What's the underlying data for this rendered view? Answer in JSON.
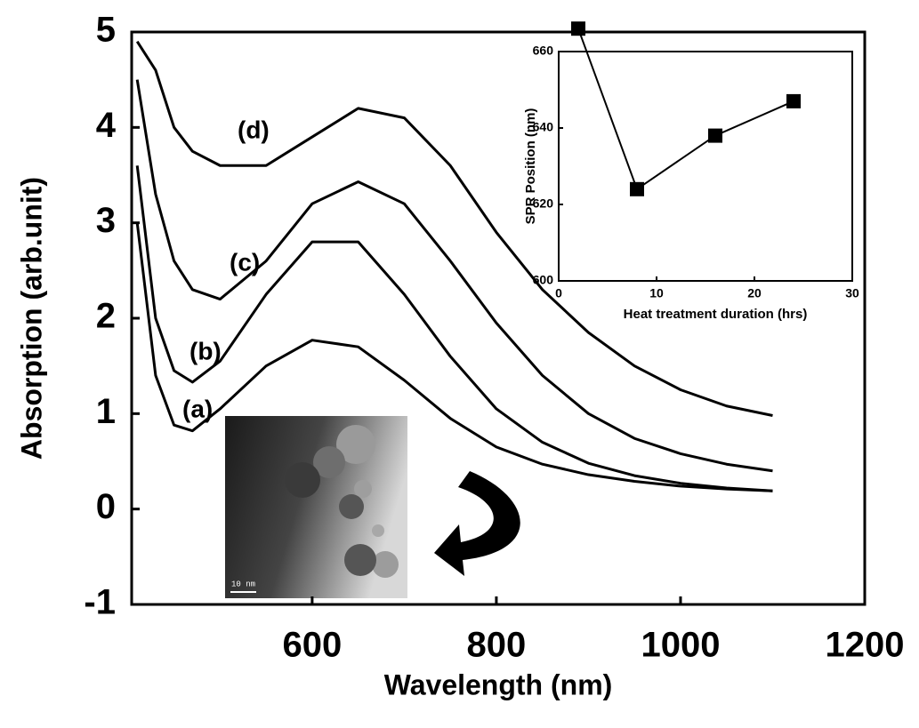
{
  "chart_data": [
    {
      "type": "line",
      "xlabel": "Wavelength (nm)",
      "ylabel": "Absorption (arb.unit)",
      "xlim": [
        404,
        1200
      ],
      "ylim": [
        -1,
        5
      ],
      "xticks": [
        600,
        800,
        1000,
        1200
      ],
      "yticks": [
        -1,
        0,
        1,
        2,
        3,
        4,
        5
      ],
      "x": [
        410,
        430,
        450,
        470,
        500,
        550,
        600,
        650,
        700,
        750,
        800,
        850,
        900,
        950,
        1000,
        1050,
        1100
      ],
      "series": [
        {
          "name": "(a)",
          "color": "#000000",
          "values": [
            3.0,
            1.4,
            0.88,
            0.82,
            1.05,
            1.5,
            1.77,
            1.7,
            1.35,
            0.95,
            0.65,
            0.47,
            0.36,
            0.29,
            0.24,
            0.21,
            0.19
          ]
        },
        {
          "name": "(b)",
          "color": "#000000",
          "values": [
            3.6,
            2.0,
            1.45,
            1.33,
            1.55,
            2.25,
            2.8,
            2.8,
            2.25,
            1.6,
            1.05,
            0.7,
            0.48,
            0.35,
            0.27,
            0.22,
            0.19
          ]
        },
        {
          "name": "(c)",
          "color": "#000000",
          "values": [
            4.5,
            3.3,
            2.6,
            2.3,
            2.2,
            2.6,
            3.2,
            3.43,
            3.2,
            2.6,
            1.95,
            1.4,
            1.0,
            0.74,
            0.58,
            0.47,
            0.4
          ]
        },
        {
          "name": "(d)",
          "color": "#000000",
          "values": [
            4.9,
            4.6,
            4.0,
            3.75,
            3.6,
            3.6,
            3.9,
            4.2,
            4.1,
            3.6,
            2.9,
            2.3,
            1.85,
            1.5,
            1.25,
            1.08,
            0.98
          ]
        }
      ]
    },
    {
      "type": "line",
      "xlabel": "Heat treatment duration (hrs)",
      "ylabel": "SPR Position (nm)",
      "xlim": [
        0,
        30
      ],
      "ylim": [
        600,
        660
      ],
      "xticks": [
        0,
        10,
        20,
        30
      ],
      "yticks": [
        600,
        620,
        640,
        660
      ],
      "x": [
        2,
        8,
        16,
        24
      ],
      "series": [
        {
          "color": "#000000",
          "marker": "square",
          "values": [
            666,
            624,
            638,
            647
          ]
        }
      ]
    }
  ],
  "image": {
    "scale_label": "10 nm"
  }
}
